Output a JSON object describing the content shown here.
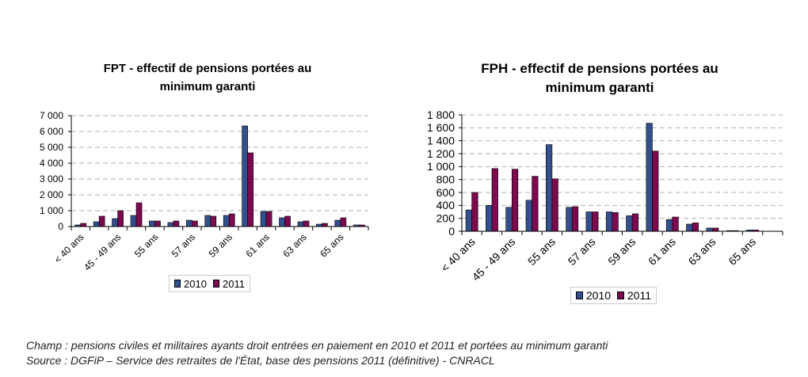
{
  "chart_data": [
    {
      "type": "bar",
      "title_line1": "FPT - effectif de pensions portées au",
      "title_line2": "minimum garanti",
      "categories": [
        "< 40 ans",
        "",
        "45 - 49 ans",
        "",
        "55 ans",
        "",
        "57 ans",
        "",
        "59 ans",
        "",
        "61 ans",
        "",
        "63 ans",
        "",
        "65 ans",
        ""
      ],
      "yticks": [
        "0",
        "1 000",
        "2 000",
        "3 000",
        "4 000",
        "5 000",
        "6 000",
        "7 000"
      ],
      "ylim": [
        0,
        7000
      ],
      "grid": true,
      "legend_placement": "bottom",
      "series": [
        {
          "name": "2010",
          "color": "#334f8c",
          "values": [
            100,
            300,
            500,
            700,
            350,
            250,
            400,
            700,
            700,
            6350,
            950,
            550,
            300,
            150,
            400,
            100
          ]
        },
        {
          "name": "2011",
          "color": "#7b0a4f",
          "values": [
            200,
            650,
            1000,
            1500,
            350,
            350,
            350,
            650,
            800,
            4650,
            950,
            650,
            350,
            200,
            550,
            100
          ]
        }
      ]
    },
    {
      "type": "bar",
      "title_line1": "FPH - effectif de pensions portées au",
      "title_line2": "minimum garanti",
      "categories": [
        "< 40 ans",
        "",
        "45 - 49 ans",
        "",
        "55 ans",
        "",
        "57 ans",
        "",
        "59 ans",
        "",
        "61 ans",
        "",
        "63 ans",
        "",
        "65 ans",
        ""
      ],
      "yticks": [
        "0",
        "200",
        "400",
        "600",
        "800",
        "1 000",
        "1 200",
        "1 400",
        "1 600",
        "1 800"
      ],
      "ylim": [
        0,
        1800
      ],
      "grid": true,
      "legend_placement": "bottom",
      "series": [
        {
          "name": "2010",
          "color": "#334f8c",
          "values": [
            330,
            400,
            370,
            480,
            1340,
            370,
            300,
            300,
            240,
            1670,
            180,
            110,
            50,
            10,
            20,
            0
          ]
        },
        {
          "name": "2011",
          "color": "#7b0a4f",
          "values": [
            600,
            970,
            960,
            850,
            810,
            380,
            300,
            290,
            270,
            1240,
            220,
            130,
            50,
            10,
            20,
            0
          ]
        }
      ]
    }
  ],
  "footer": {
    "line1": "Champ : pensions civiles et militaires ayants droit entrées en paiement en 2010 et 2011 et portées au minimum garanti",
    "line2": "Source : DGFiP – Service des retraites de l'État, base des pensions 2011 (définitive) - CNRACL"
  }
}
